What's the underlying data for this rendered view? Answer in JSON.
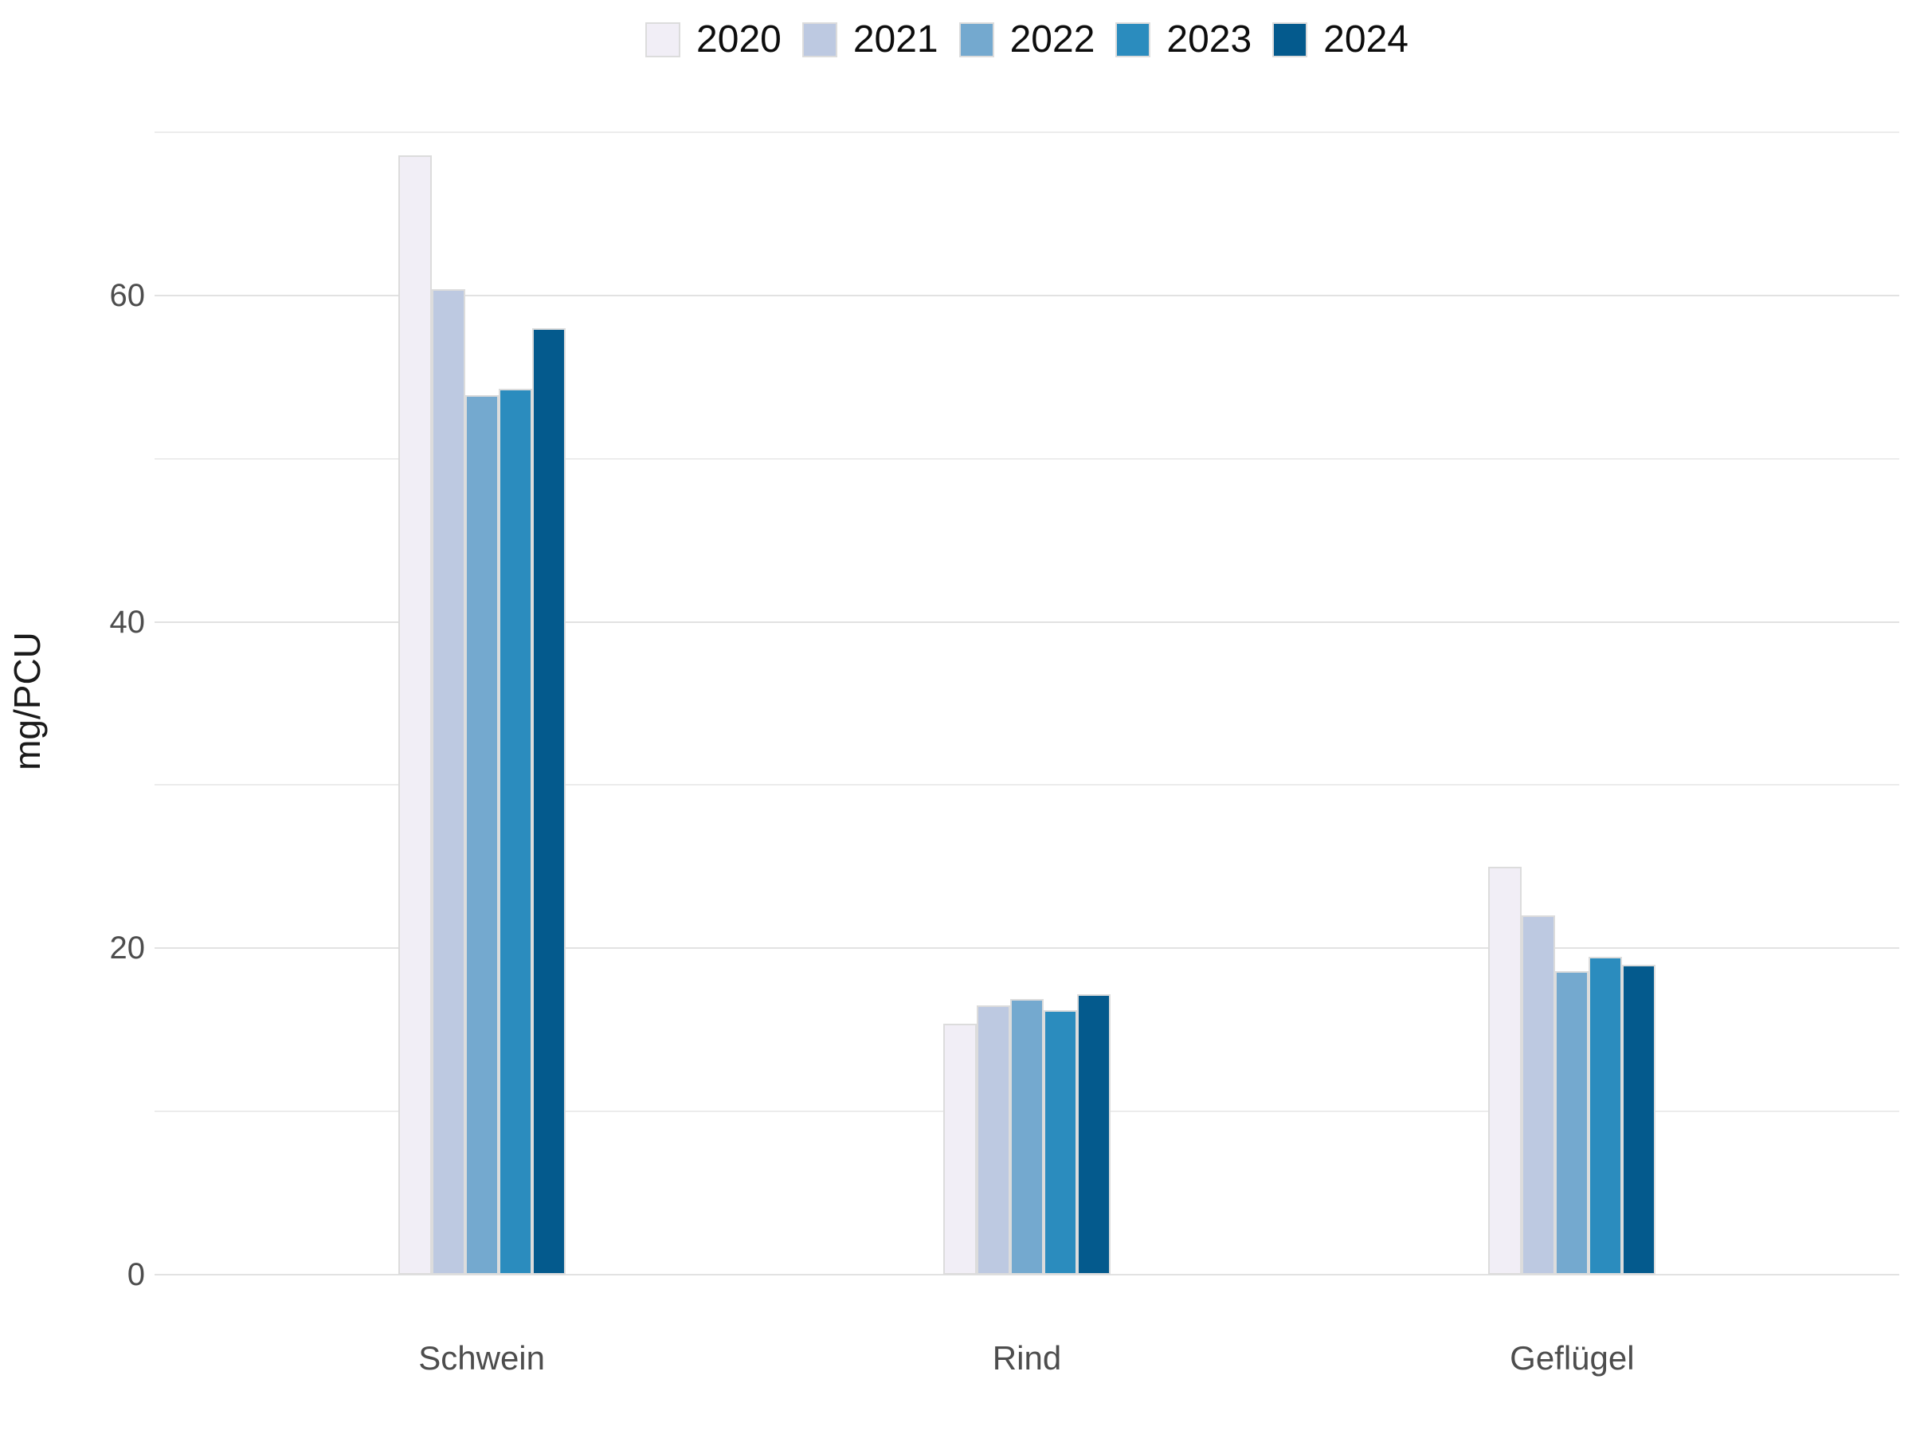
{
  "chart_data": {
    "type": "bar",
    "title": "",
    "xlabel": "",
    "ylabel": "mg/PCU",
    "categories": [
      "Schwein",
      "Rind",
      "Geflügel"
    ],
    "series": [
      {
        "name": "2020",
        "color": "#f1eef6",
        "values": [
          68.6,
          15.4,
          25.0
        ]
      },
      {
        "name": "2021",
        "color": "#bdc9e1",
        "values": [
          60.4,
          16.5,
          22.0
        ]
      },
      {
        "name": "2022",
        "color": "#74a9cf",
        "values": [
          53.9,
          16.9,
          18.6
        ]
      },
      {
        "name": "2023",
        "color": "#2b8cbe",
        "values": [
          54.3,
          16.2,
          19.5
        ]
      },
      {
        "name": "2024",
        "color": "#045a8d",
        "values": [
          58.0,
          17.2,
          19.0
        ]
      }
    ],
    "ylim": [
      0,
      72.1
    ],
    "yticks": [
      0,
      20,
      40,
      60
    ],
    "minor_ticks": [
      10,
      30,
      50,
      70
    ],
    "grid": "horizontal",
    "legend_position": "top-center",
    "bar_border_color": "#dcdcdc",
    "axis_text_color": "#4d4d4d"
  }
}
